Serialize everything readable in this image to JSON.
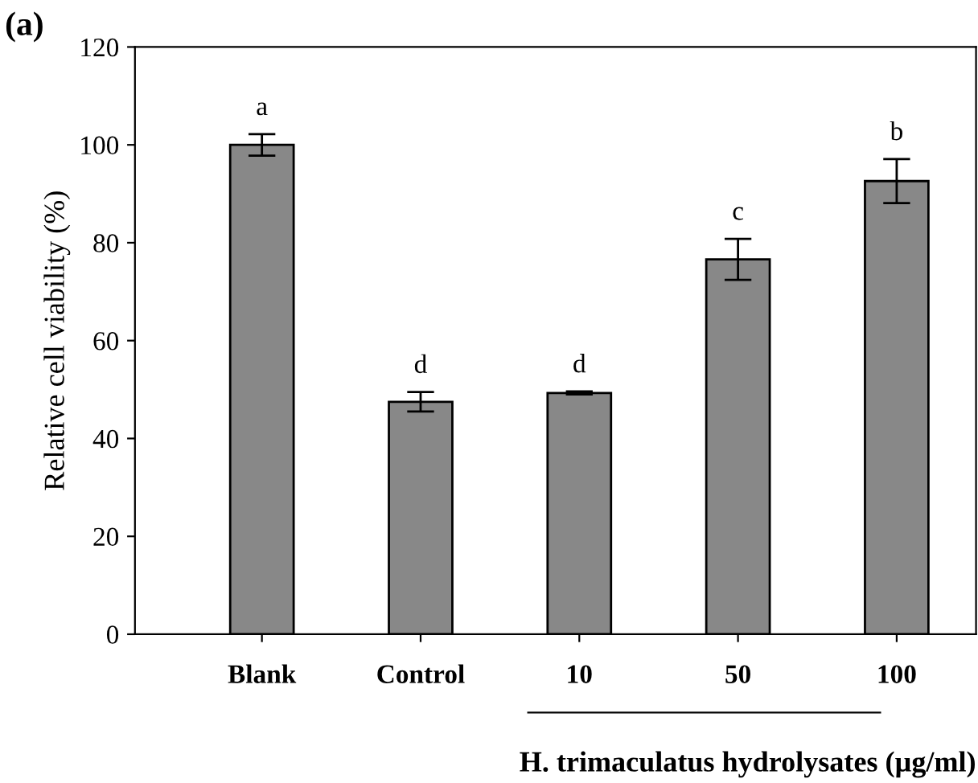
{
  "chart_data": {
    "type": "bar",
    "ylabel": "Relative cell viability (%)",
    "xlabel": "H. trimaculatus hydrolysates (µg/ml)",
    "categories": [
      "Blank",
      "Control",
      "10",
      "50",
      "100"
    ],
    "values": [
      100,
      47.5,
      49.3,
      76.6,
      92.6
    ],
    "errors": [
      2.2,
      2.0,
      0.3,
      4.2,
      4.5
    ],
    "color": "#888888",
    "ylim": [
      0,
      120
    ],
    "yticks": [
      0,
      20,
      40,
      60,
      80,
      100,
      120
    ],
    "annotations": [
      "(a)",
      "a",
      "d",
      "d",
      "c",
      "b"
    ],
    "grid": false,
    "legend": false
  }
}
